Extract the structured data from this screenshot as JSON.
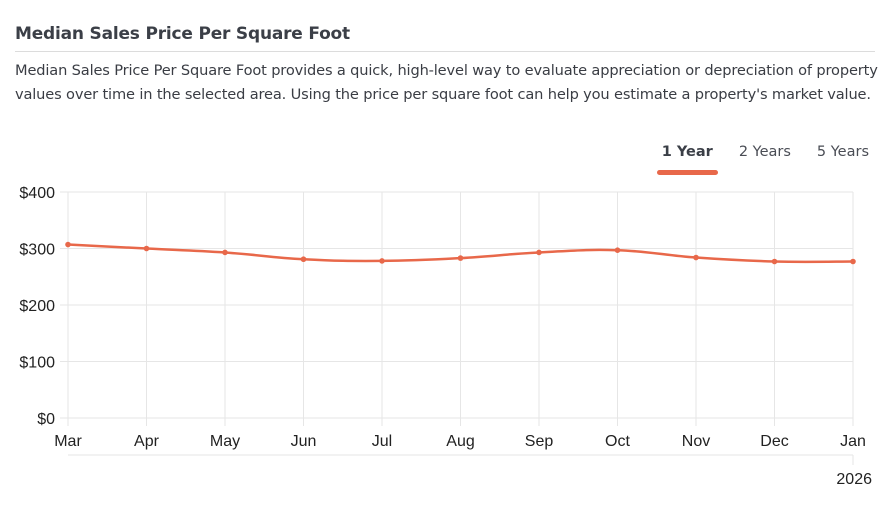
{
  "header": {
    "title": "Median Sales Price Per Square Foot",
    "description": "Median Sales Price Per Square Foot provides a quick, high-level way to evaluate appreciation or depreciation of property values over time in the selected area. Using the price per square foot can help you estimate a property's market value."
  },
  "tabs": [
    {
      "label": "1 Year",
      "active": true
    },
    {
      "label": "2 Years",
      "active": false
    },
    {
      "label": "5 Years",
      "active": false
    }
  ],
  "colors": {
    "accent": "#e8684a",
    "line": "#e8684a",
    "grid": "#e6e6e6",
    "text": "#3b3f47"
  },
  "chart_data": {
    "type": "line",
    "title": "Median Sales Price Per Square Foot",
    "xlabel": "",
    "ylabel": "",
    "categories": [
      "Mar",
      "Apr",
      "May",
      "Jun",
      "Jul",
      "Aug",
      "Sep",
      "Oct",
      "Nov",
      "Dec",
      "Jan"
    ],
    "year_annotation": "2026",
    "series": [
      {
        "name": "Median Sales Price Per Square Foot",
        "values": [
          307,
          300,
          293,
          281,
          278,
          283,
          293,
          297,
          284,
          277,
          277
        ]
      }
    ],
    "yticks": [
      "$0",
      "$100",
      "$200",
      "$300",
      "$400"
    ],
    "ylim": [
      0,
      400
    ],
    "grid": true,
    "legend": "none"
  }
}
